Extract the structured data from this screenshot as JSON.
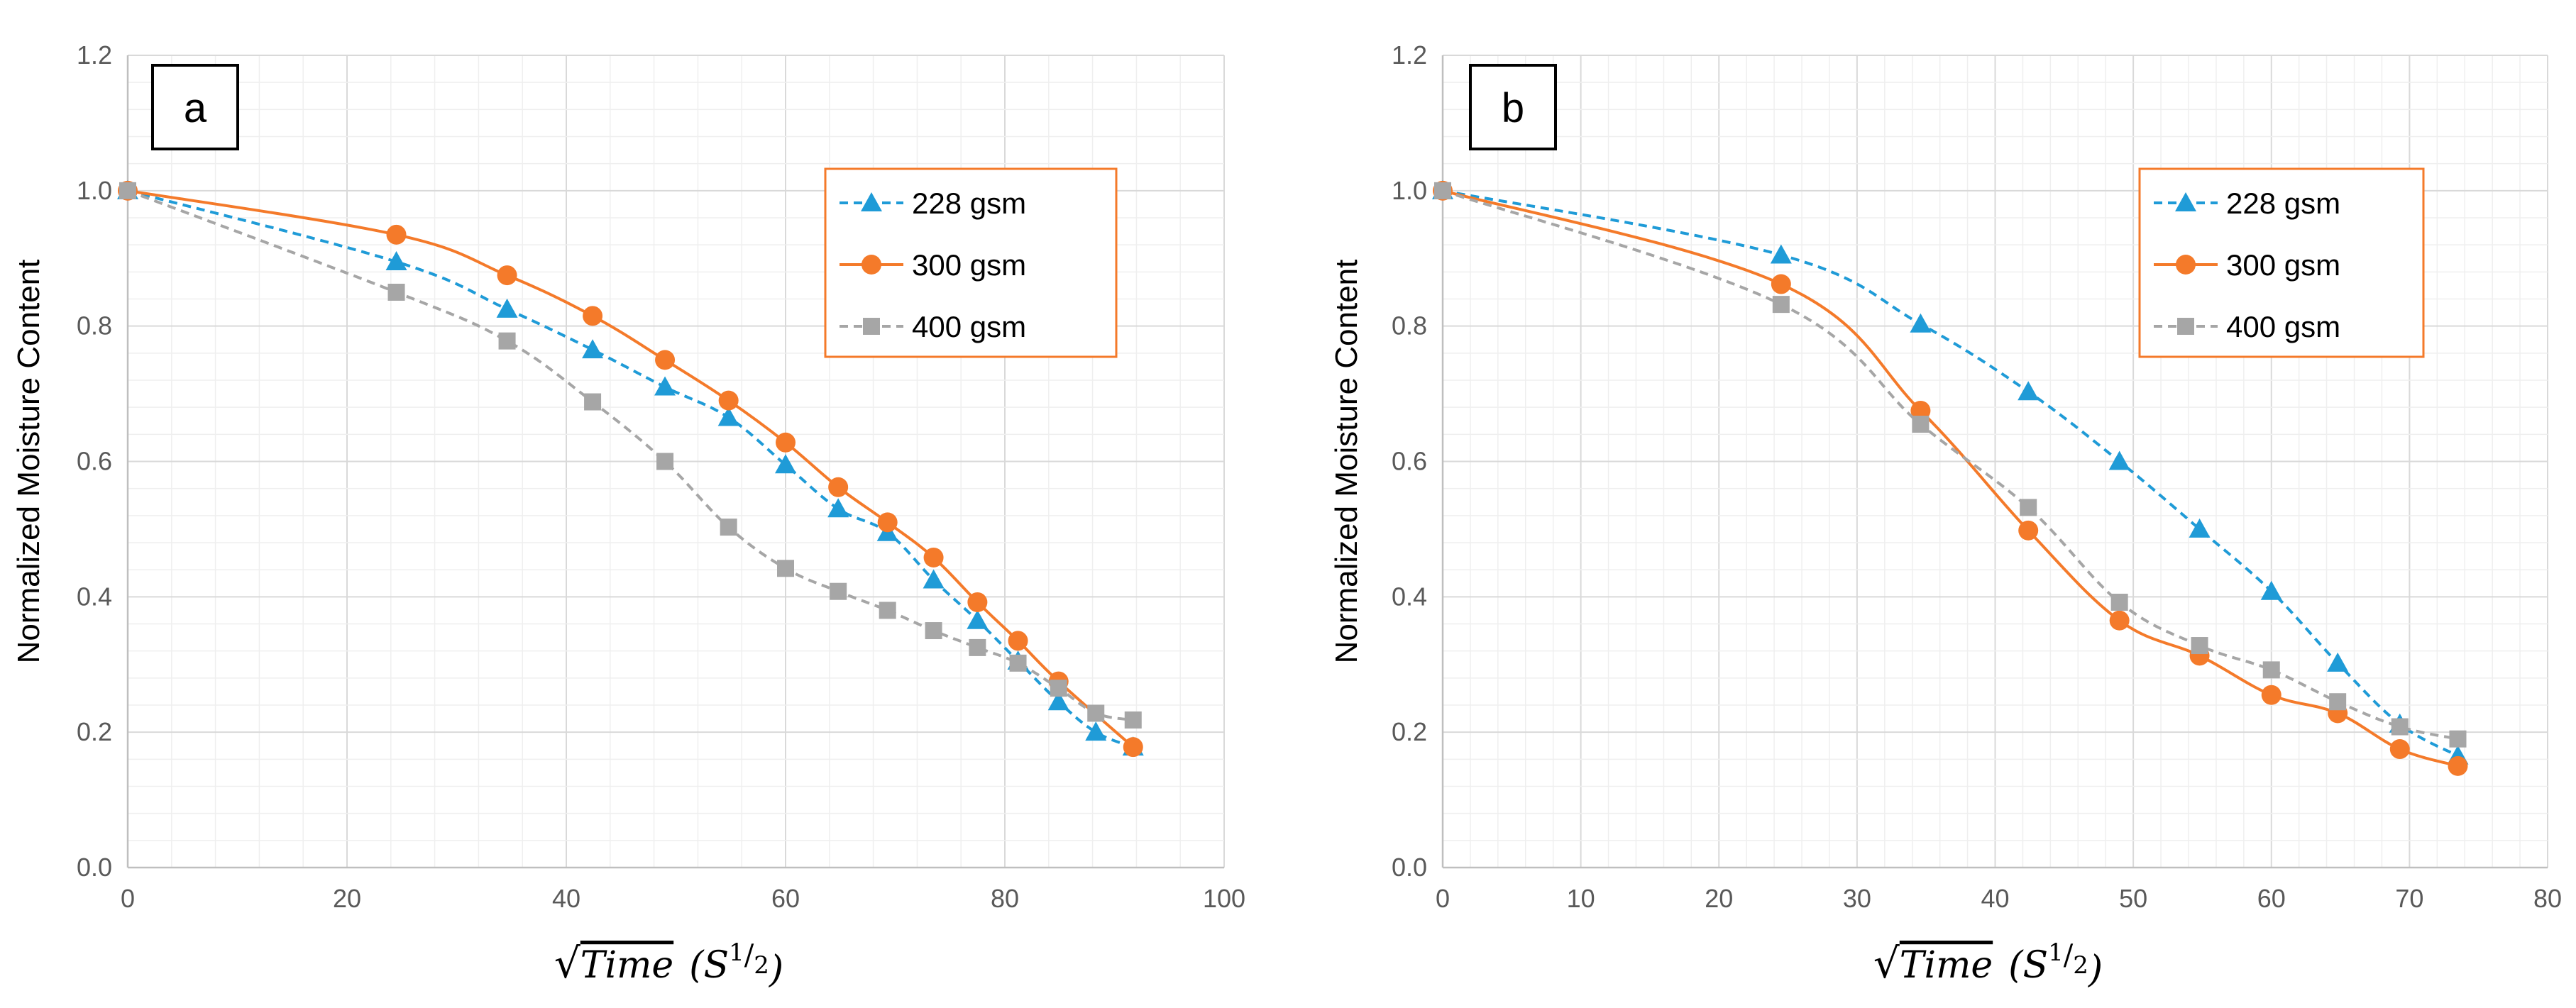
{
  "chart_data": [
    {
      "type": "line",
      "panel_label": "a",
      "xlabel_parts": {
        "radical": "√",
        "main": "Time",
        "open": "(S",
        "sup_num": "1",
        "sup_den": "2",
        "close": ")"
      },
      "ylabel": "Normalized Moisture Content",
      "xlim": [
        0,
        100
      ],
      "ylim": [
        0,
        1.2
      ],
      "xticks": [
        "0",
        "20",
        "40",
        "60",
        "80",
        "100"
      ],
      "yticks": [
        "0.0",
        "0.2",
        "0.4",
        "0.6",
        "0.8",
        "1.0",
        "1.2"
      ],
      "grid": true,
      "legend_position": "top-right",
      "series": [
        {
          "name": "228 gsm",
          "color": "#1F9BD7",
          "marker": "triangle",
          "line": "dashed",
          "x": [
            0,
            24.5,
            34.6,
            42.4,
            49,
            54.8,
            60,
            64.8,
            69.3,
            73.5,
            77.5,
            81.2,
            84.9,
            88.3,
            91.7
          ],
          "y": [
            1.0,
            0.895,
            0.825,
            0.765,
            0.71,
            0.665,
            0.595,
            0.53,
            0.495,
            0.425,
            0.365,
            0.305,
            0.245,
            0.2,
            0.178
          ]
        },
        {
          "name": "300 gsm",
          "color": "#F47A2A",
          "marker": "circle",
          "line": "solid",
          "x": [
            0,
            24.5,
            34.6,
            42.4,
            49,
            54.8,
            60,
            64.8,
            69.3,
            73.5,
            77.5,
            81.2,
            84.9,
            91.7
          ],
          "y": [
            1.0,
            0.935,
            0.875,
            0.815,
            0.75,
            0.69,
            0.628,
            0.562,
            0.51,
            0.458,
            0.392,
            0.335,
            0.275,
            0.178
          ]
        },
        {
          "name": "400 gsm",
          "color": "#A6A6A6",
          "marker": "square",
          "line": "dashed",
          "x": [
            0,
            24.5,
            34.6,
            42.4,
            49,
            54.8,
            60,
            64.8,
            69.3,
            73.5,
            77.5,
            81.2,
            84.9,
            88.3,
            91.7
          ],
          "y": [
            1.0,
            0.85,
            0.778,
            0.688,
            0.6,
            0.503,
            0.442,
            0.408,
            0.38,
            0.35,
            0.325,
            0.302,
            0.265,
            0.228,
            0.218
          ]
        }
      ]
    },
    {
      "type": "line",
      "panel_label": "b",
      "xlabel_parts": {
        "radical": "√",
        "main": "Time",
        "open": "(S",
        "sup_num": "1",
        "sup_den": "2",
        "close": ")"
      },
      "ylabel": "Normalized Moisture Content",
      "xlim": [
        0,
        80
      ],
      "ylim": [
        0,
        1.2
      ],
      "xticks": [
        "0",
        "10",
        "20",
        "30",
        "40",
        "50",
        "60",
        "70",
        "80"
      ],
      "yticks": [
        "0.0",
        "0.2",
        "0.4",
        "0.6",
        "0.8",
        "1.0",
        "1.2"
      ],
      "grid": true,
      "legend_position": "top-right",
      "series": [
        {
          "name": "228 gsm",
          "color": "#1F9BD7",
          "marker": "triangle",
          "line": "dashed",
          "x": [
            0,
            24.5,
            34.6,
            42.4,
            49,
            54.8,
            60,
            64.8,
            69.3,
            73.5
          ],
          "y": [
            1.0,
            0.905,
            0.803,
            0.703,
            0.6,
            0.5,
            0.408,
            0.302,
            0.212,
            0.165
          ]
        },
        {
          "name": "300 gsm",
          "color": "#F47A2A",
          "marker": "circle",
          "line": "solid",
          "x": [
            0,
            24.5,
            34.6,
            42.4,
            49,
            54.8,
            60,
            64.8,
            69.3,
            73.5
          ],
          "y": [
            1.0,
            0.862,
            0.675,
            0.498,
            0.365,
            0.313,
            0.255,
            0.228,
            0.175,
            0.15
          ]
        },
        {
          "name": "400 gsm",
          "color": "#A6A6A6",
          "marker": "square",
          "line": "dashed",
          "x": [
            0,
            24.5,
            34.6,
            42.4,
            49,
            54.8,
            60,
            64.8,
            69.3,
            73.5
          ],
          "y": [
            1.0,
            0.832,
            0.655,
            0.532,
            0.392,
            0.328,
            0.292,
            0.245,
            0.208,
            0.19
          ]
        }
      ]
    }
  ]
}
